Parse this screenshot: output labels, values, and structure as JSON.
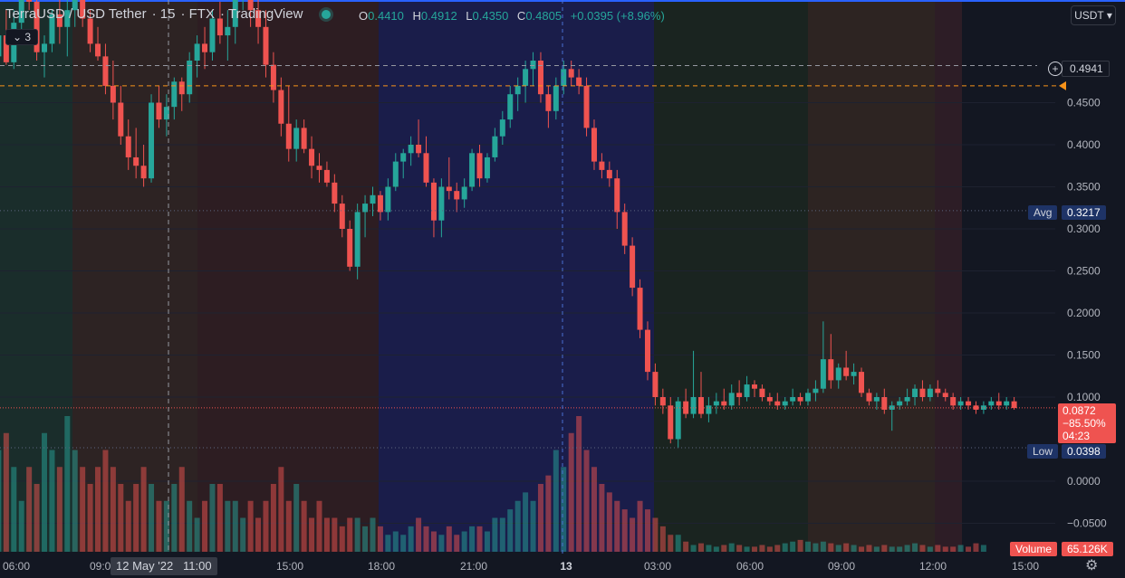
{
  "header": {
    "symbol": "TerraUSD / USD Tether",
    "interval": "15",
    "exchange": "FTX",
    "source": "TradingView",
    "o_label": "O",
    "o_value": "0.4410",
    "h_label": "H",
    "h_value": "0.4912",
    "l_label": "L",
    "l_value": "0.4350",
    "c_label": "C",
    "c_value": "0.4805",
    "change": "+0.0395 (+8.96%)",
    "indicator_count": "3",
    "currency": "USDT"
  },
  "colors": {
    "up": "#26a69a",
    "down": "#ef5350",
    "background": "#131722"
  },
  "price_tags": {
    "crosshair_price": "0.4941",
    "avg_label": "Avg",
    "avg_value": "0.3217",
    "low_label": "Low",
    "low_value": "0.0398",
    "last_price": "0.0872",
    "last_change": "−85.50%",
    "countdown": "04:23",
    "volume_label": "Volume",
    "volume_value": "65.126K"
  },
  "crosshair_time": "12 May '22   11:00",
  "chart_data": {
    "type": "candlestick",
    "y_ticks": [
      "0.4500",
      "0.4000",
      "0.3500",
      "0.3000",
      "0.2500",
      "0.2000",
      "0.1500",
      "0.1000",
      "0.0000",
      "−0.0500"
    ],
    "y_tick_values": [
      0.45,
      0.4,
      0.35,
      0.3,
      0.25,
      0.2,
      0.15,
      0.1,
      0.0,
      -0.05
    ],
    "x_ticks": [
      "06:00",
      "09:00",
      "15:00",
      "18:00",
      "21:00",
      "13",
      "03:00",
      "06:00",
      "09:00",
      "12:00",
      "15:00"
    ],
    "avg": 0.3217,
    "low": 0.0398,
    "last": 0.0872,
    "reference_line": 0.47,
    "crosshair": 0.4941,
    "candles": [
      [
        0.52,
        0.58,
        0.495,
        0.505
      ],
      [
        0.505,
        0.54,
        0.48,
        0.53
      ],
      [
        0.53,
        0.56,
        0.495,
        0.498
      ],
      [
        0.498,
        0.56,
        0.49,
        0.545
      ],
      [
        0.545,
        0.6,
        0.52,
        0.59
      ],
      [
        0.59,
        0.62,
        0.56,
        0.57
      ],
      [
        0.57,
        0.59,
        0.5,
        0.51
      ],
      [
        0.51,
        0.53,
        0.48,
        0.52
      ],
      [
        0.52,
        0.56,
        0.51,
        0.555
      ],
      [
        0.555,
        0.58,
        0.52,
        0.54
      ],
      [
        0.54,
        0.575,
        0.505,
        0.56
      ],
      [
        0.56,
        0.59,
        0.54,
        0.575
      ],
      [
        0.575,
        0.6,
        0.54,
        0.55
      ],
      [
        0.55,
        0.56,
        0.51,
        0.52
      ],
      [
        0.52,
        0.54,
        0.5,
        0.505
      ],
      [
        0.505,
        0.52,
        0.46,
        0.47
      ],
      [
        0.47,
        0.5,
        0.43,
        0.45
      ],
      [
        0.45,
        0.47,
        0.4,
        0.41
      ],
      [
        0.41,
        0.43,
        0.37,
        0.385
      ],
      [
        0.385,
        0.42,
        0.36,
        0.375
      ],
      [
        0.375,
        0.4,
        0.35,
        0.36
      ],
      [
        0.36,
        0.46,
        0.355,
        0.45
      ],
      [
        0.45,
        0.47,
        0.42,
        0.43
      ],
      [
        0.43,
        0.46,
        0.41,
        0.445
      ],
      [
        0.445,
        0.48,
        0.43,
        0.475
      ],
      [
        0.475,
        0.48,
        0.44,
        0.46
      ],
      [
        0.46,
        0.51,
        0.45,
        0.5
      ],
      [
        0.5,
        0.53,
        0.48,
        0.52
      ],
      [
        0.52,
        0.54,
        0.49,
        0.51
      ],
      [
        0.51,
        0.56,
        0.5,
        0.55
      ],
      [
        0.55,
        0.57,
        0.52,
        0.53
      ],
      [
        0.53,
        0.56,
        0.5,
        0.54
      ],
      [
        0.54,
        0.6,
        0.52,
        0.58
      ],
      [
        0.58,
        0.62,
        0.56,
        0.6
      ],
      [
        0.6,
        0.62,
        0.54,
        0.56
      ],
      [
        0.56,
        0.58,
        0.52,
        0.54
      ],
      [
        0.54,
        0.56,
        0.48,
        0.495
      ],
      [
        0.495,
        0.51,
        0.45,
        0.465
      ],
      [
        0.465,
        0.48,
        0.41,
        0.425
      ],
      [
        0.425,
        0.47,
        0.38,
        0.395
      ],
      [
        0.395,
        0.43,
        0.38,
        0.42
      ],
      [
        0.42,
        0.43,
        0.39,
        0.395
      ],
      [
        0.395,
        0.41,
        0.36,
        0.375
      ],
      [
        0.375,
        0.39,
        0.355,
        0.37
      ],
      [
        0.37,
        0.38,
        0.35,
        0.355
      ],
      [
        0.355,
        0.365,
        0.32,
        0.33
      ],
      [
        0.33,
        0.34,
        0.29,
        0.3
      ],
      [
        0.3,
        0.31,
        0.25,
        0.255
      ],
      [
        0.255,
        0.33,
        0.24,
        0.32
      ],
      [
        0.32,
        0.34,
        0.29,
        0.33
      ],
      [
        0.33,
        0.35,
        0.315,
        0.34
      ],
      [
        0.34,
        0.345,
        0.31,
        0.32
      ],
      [
        0.32,
        0.36,
        0.31,
        0.35
      ],
      [
        0.35,
        0.39,
        0.345,
        0.38
      ],
      [
        0.38,
        0.395,
        0.36,
        0.39
      ],
      [
        0.39,
        0.41,
        0.375,
        0.4
      ],
      [
        0.4,
        0.43,
        0.385,
        0.39
      ],
      [
        0.39,
        0.41,
        0.35,
        0.355
      ],
      [
        0.355,
        0.36,
        0.29,
        0.31
      ],
      [
        0.31,
        0.36,
        0.29,
        0.35
      ],
      [
        0.35,
        0.385,
        0.335,
        0.345
      ],
      [
        0.345,
        0.355,
        0.32,
        0.335
      ],
      [
        0.335,
        0.36,
        0.325,
        0.35
      ],
      [
        0.35,
        0.395,
        0.345,
        0.39
      ],
      [
        0.39,
        0.4,
        0.35,
        0.36
      ],
      [
        0.36,
        0.39,
        0.355,
        0.385
      ],
      [
        0.385,
        0.42,
        0.38,
        0.41
      ],
      [
        0.41,
        0.44,
        0.4,
        0.43
      ],
      [
        0.43,
        0.47,
        0.42,
        0.46
      ],
      [
        0.46,
        0.48,
        0.44,
        0.47
      ],
      [
        0.47,
        0.5,
        0.45,
        0.49
      ],
      [
        0.49,
        0.51,
        0.47,
        0.5
      ],
      [
        0.5,
        0.51,
        0.45,
        0.46
      ],
      [
        0.46,
        0.47,
        0.42,
        0.44
      ],
      [
        0.44,
        0.48,
        0.43,
        0.47
      ],
      [
        0.47,
        0.5,
        0.46,
        0.49
      ],
      [
        0.49,
        0.5,
        0.47,
        0.48
      ],
      [
        0.48,
        0.49,
        0.46,
        0.47
      ],
      [
        0.47,
        0.48,
        0.41,
        0.42
      ],
      [
        0.42,
        0.43,
        0.37,
        0.38
      ],
      [
        0.38,
        0.39,
        0.36,
        0.37
      ],
      [
        0.37,
        0.38,
        0.35,
        0.36
      ],
      [
        0.36,
        0.37,
        0.3,
        0.32
      ],
      [
        0.32,
        0.33,
        0.27,
        0.28
      ],
      [
        0.28,
        0.29,
        0.22,
        0.23
      ],
      [
        0.23,
        0.24,
        0.17,
        0.18
      ],
      [
        0.18,
        0.19,
        0.12,
        0.13
      ],
      [
        0.13,
        0.14,
        0.09,
        0.1
      ],
      [
        0.1,
        0.11,
        0.08,
        0.09
      ],
      [
        0.09,
        0.1,
        0.045,
        0.05
      ],
      [
        0.05,
        0.1,
        0.04,
        0.095
      ],
      [
        0.095,
        0.11,
        0.075,
        0.08
      ],
      [
        0.08,
        0.155,
        0.075,
        0.1
      ],
      [
        0.1,
        0.13,
        0.075,
        0.08
      ],
      [
        0.08,
        0.1,
        0.07,
        0.09
      ],
      [
        0.09,
        0.105,
        0.08,
        0.095
      ],
      [
        0.095,
        0.11,
        0.085,
        0.09
      ],
      [
        0.09,
        0.115,
        0.085,
        0.105
      ],
      [
        0.105,
        0.12,
        0.09,
        0.1
      ],
      [
        0.1,
        0.125,
        0.095,
        0.115
      ],
      [
        0.115,
        0.12,
        0.1,
        0.11
      ],
      [
        0.11,
        0.115,
        0.095,
        0.1
      ],
      [
        0.1,
        0.105,
        0.09,
        0.095
      ],
      [
        0.095,
        0.105,
        0.085,
        0.09
      ],
      [
        0.09,
        0.1,
        0.085,
        0.095
      ],
      [
        0.095,
        0.11,
        0.09,
        0.1
      ],
      [
        0.1,
        0.105,
        0.09,
        0.095
      ],
      [
        0.095,
        0.11,
        0.09,
        0.105
      ],
      [
        0.105,
        0.12,
        0.095,
        0.11
      ],
      [
        0.11,
        0.19,
        0.105,
        0.145
      ],
      [
        0.145,
        0.175,
        0.11,
        0.12
      ],
      [
        0.12,
        0.14,
        0.11,
        0.135
      ],
      [
        0.135,
        0.155,
        0.12,
        0.125
      ],
      [
        0.125,
        0.14,
        0.115,
        0.13
      ],
      [
        0.13,
        0.135,
        0.1,
        0.105
      ],
      [
        0.105,
        0.11,
        0.09,
        0.095
      ],
      [
        0.095,
        0.105,
        0.085,
        0.1
      ],
      [
        0.1,
        0.11,
        0.08,
        0.085
      ],
      [
        0.085,
        0.095,
        0.06,
        0.09
      ],
      [
        0.09,
        0.1,
        0.085,
        0.095
      ],
      [
        0.095,
        0.11,
        0.09,
        0.1
      ],
      [
        0.1,
        0.115,
        0.09,
        0.11
      ],
      [
        0.11,
        0.12,
        0.095,
        0.1
      ],
      [
        0.1,
        0.115,
        0.095,
        0.11
      ],
      [
        0.11,
        0.12,
        0.1,
        0.105
      ],
      [
        0.105,
        0.11,
        0.095,
        0.1
      ],
      [
        0.1,
        0.105,
        0.085,
        0.09
      ],
      [
        0.09,
        0.1,
        0.085,
        0.095
      ],
      [
        0.095,
        0.1,
        0.085,
        0.09
      ],
      [
        0.09,
        0.095,
        0.08,
        0.085
      ],
      [
        0.085,
        0.095,
        0.08,
        0.09
      ],
      [
        0.09,
        0.1,
        0.085,
        0.095
      ],
      [
        0.095,
        0.105,
        0.085,
        0.09
      ],
      [
        0.09,
        0.1,
        0.085,
        0.095
      ],
      [
        0.095,
        0.1,
        0.085,
        0.087
      ]
    ],
    "volume": [
      8,
      6,
      7,
      5,
      3,
      5,
      4,
      7,
      6,
      5,
      8,
      6,
      5,
      4,
      5,
      6,
      5,
      4,
      3,
      4,
      5,
      4,
      3,
      3,
      4,
      5,
      3,
      2,
      3,
      4,
      4,
      3,
      3,
      2,
      3,
      2,
      3,
      4,
      5,
      3,
      4,
      3,
      2,
      3,
      2,
      2,
      1.5,
      2,
      2,
      1.5,
      2,
      1.5,
      1,
      1.2,
      1,
      1.5,
      2,
      1.5,
      1.2,
      1,
      1.5,
      1,
      1.2,
      1.5,
      1.5,
      1.2,
      2,
      2,
      2.5,
      3,
      3.5,
      3,
      4,
      4.5,
      6,
      5,
      7,
      8,
      6,
      5,
      4,
      3.5,
      3,
      2.5,
      2,
      3,
      2.5,
      2,
      1.5,
      1,
      1,
      0.6,
      0.4,
      0.5,
      0.4,
      0.3,
      0.4,
      0.5,
      0.4,
      0.3,
      0.3,
      0.4,
      0.3,
      0.4,
      0.5,
      0.6,
      0.7,
      0.6,
      0.5,
      0.6,
      0.5,
      0.4,
      0.5,
      0.4,
      0.3,
      0.4,
      0.3,
      0.4,
      0.3,
      0.3,
      0.4,
      0.5,
      0.4,
      0.3,
      0.4,
      0.3,
      0.3,
      0.4,
      0.3,
      0.5,
      0.4
    ]
  }
}
